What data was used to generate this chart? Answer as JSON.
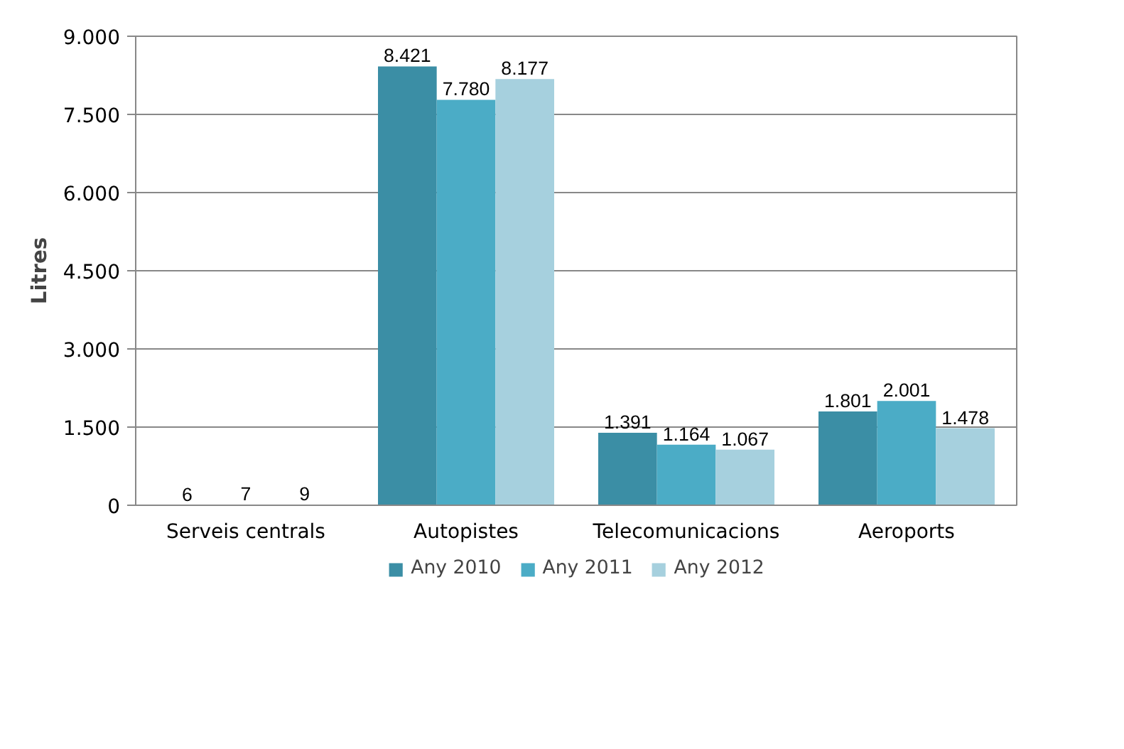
{
  "chart_data": {
    "type": "bar",
    "ylabel": "Litres",
    "categories": [
      "Serveis centrals",
      "Autopistes",
      "Telecomunicacions",
      "Aeroports"
    ],
    "series": [
      {
        "name": "Any 2010",
        "color": "#3b8ea5",
        "values": [
          6,
          8421,
          1391,
          1801
        ],
        "value_labels": [
          "6",
          "8.421",
          "1.391",
          "1.801"
        ]
      },
      {
        "name": "Any 2011",
        "color": "#4bacc6",
        "values": [
          7,
          7780,
          1164,
          2001
        ],
        "value_labels": [
          "7",
          "7.780",
          "1.164",
          "2.001"
        ]
      },
      {
        "name": "Any 2012",
        "color": "#a6d0de",
        "values": [
          9,
          8177,
          1067,
          1478
        ],
        "value_labels": [
          "9",
          "8.177",
          "1.067",
          "1.478"
        ]
      }
    ],
    "ylim": [
      0,
      9000
    ],
    "yticks": [
      {
        "value": 0,
        "label": "0"
      },
      {
        "value": 1500,
        "label": "1.500"
      },
      {
        "value": 3000,
        "label": "3.000"
      },
      {
        "value": 4500,
        "label": "4.500"
      },
      {
        "value": 6000,
        "label": "6.000"
      },
      {
        "value": 7500,
        "label": "7.500"
      },
      {
        "value": 9000,
        "label": "9.000"
      }
    ],
    "grid": "y",
    "legend": "bottom"
  }
}
